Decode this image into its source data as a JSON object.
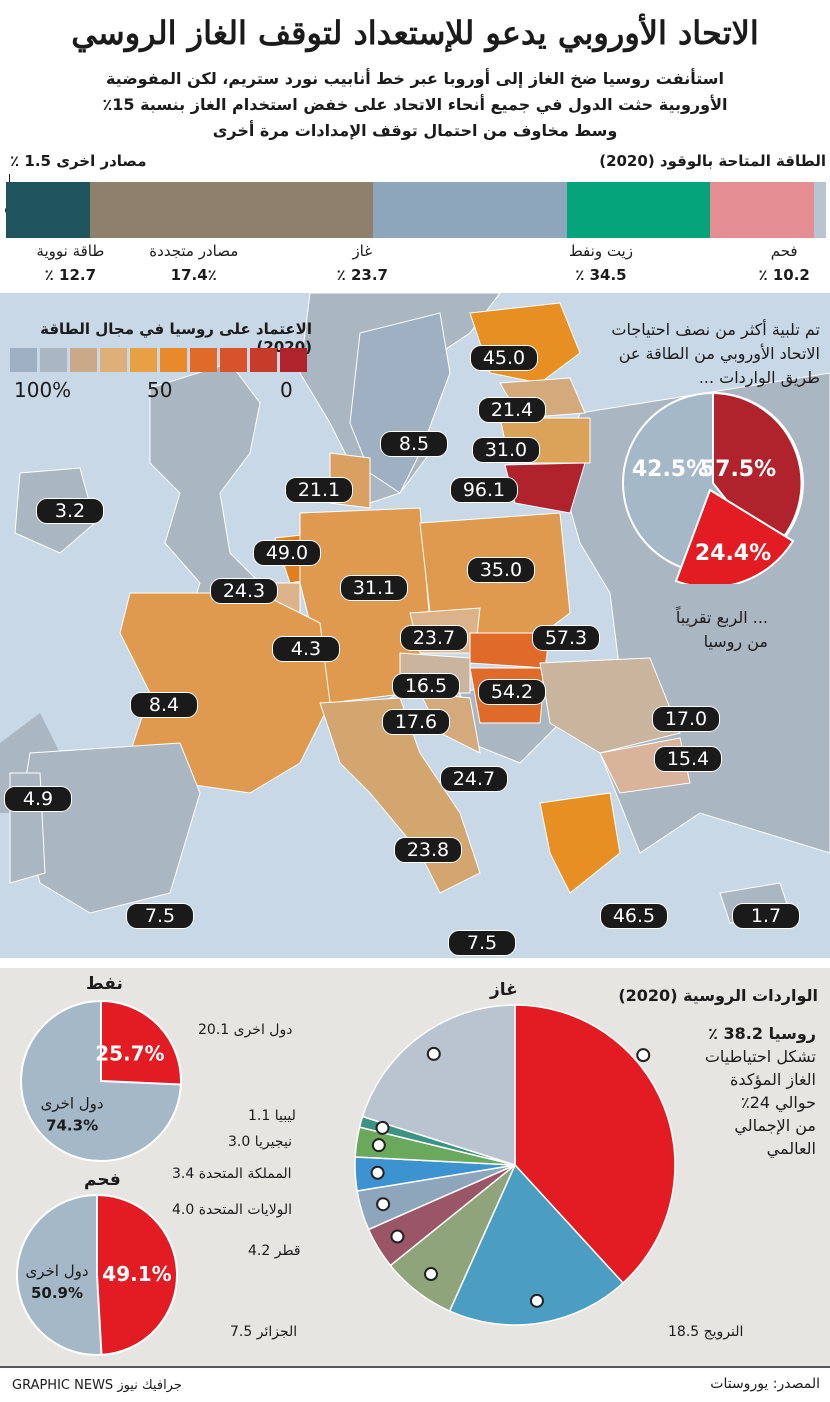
{
  "title": "الاتحاد الأوروبي يدعو للإستعداد لتوقف الغاز الروسي",
  "subtitle": [
    "استأنفت روسيا ضخ الغاز إلى أوروبا عبر خط أنابيب نورد ستريم، لكن المفوضية",
    "الأوروبية حثت الدول في جميع أنحاء الاتحاد على خفض استخدام الغاز بنسبة 15٪",
    "وسط مخاوف من احتمال توقف الإمدادات مرة أخرى"
  ],
  "colors": {
    "russia_red": "#e31b23",
    "dark_red": "#b0232c",
    "grey_blue": "#b8c4cf",
    "panel_bg": "#e7e5e2"
  },
  "energy_section": {
    "heading": "الطاقة المتاحة بالوقود (2020)",
    "other_label": "مصادر اخرى 1.5 ٪",
    "segments": [
      {
        "name": "فحم",
        "pct_label": "10.2 ٪",
        "value": 10.2,
        "color": "#1f545f"
      },
      {
        "name": "زيت ونفط",
        "pct_label": "34.5 ٪",
        "value": 34.5,
        "color": "#8f806b"
      },
      {
        "name": "غاز",
        "pct_label": "23.7 ٪",
        "value": 23.7,
        "color": "#8ea6bb"
      },
      {
        "name": "مصادر متجددة",
        "pct_label": "17.4٪",
        "value": 17.4,
        "color": "#06a47a"
      },
      {
        "name": "طاقة نووية",
        "pct_label": "12.7 ٪",
        "value": 12.7,
        "color": "#e58e92"
      },
      {
        "name": "مصادر اخرى",
        "pct_label": "1.5 ٪",
        "value": 1.5,
        "color": "#b8c4cf"
      }
    ]
  },
  "map": {
    "legend_title": "الاعتماد على روسيا في مجال الطاقة (2020)",
    "legend_colors": [
      "#b0232c",
      "#c63b2a",
      "#d9532a",
      "#e06b28",
      "#e88a2a",
      "#e8a045",
      "#ddb07a",
      "#c9a98a",
      "#aab6c2",
      "#9fb0c2"
    ],
    "legend_ticks": [
      "0",
      "50",
      "100%"
    ],
    "imports_text": [
      "تم تلبية أكثر من نصف احتياجات",
      "الاتحاد الأوروبي من الطاقة عن",
      "طريق الواردات ..."
    ],
    "quarter_text": [
      "... الربع تقريباً",
      "من روسيا"
    ],
    "imports_pie": {
      "imports": "57.5%",
      "domestic": "42.5%",
      "russia": "24.4%"
    },
    "country_values": [
      "45.0",
      "21.4",
      "31.0",
      "96.1",
      "8.5",
      "21.1",
      "3.2",
      "49.0",
      "24.3",
      "31.1",
      "35.0",
      "23.7",
      "57.3",
      "4.3",
      "16.5",
      "54.2",
      "8.4",
      "17.6",
      "17.0",
      "15.4",
      "24.7",
      "4.9",
      "23.8",
      "7.5",
      "46.5",
      "1.7",
      "7.5"
    ]
  },
  "imports_section": {
    "heading": "الواردات الروسية (2020)",
    "gas_title": "غاز",
    "oil_title": "نفط",
    "coal_title": "فحم",
    "russia_note_title": "روسيا 38.2 ٪",
    "russia_note": [
      "تشكل احتياطيات",
      "الغاز المؤكدة",
      "حوالي 24٪",
      "من الإجمالي",
      "العالمي"
    ],
    "gas_slices": [
      {
        "name": "روسيا",
        "value": 38.2,
        "label": "",
        "color": "#e31b23"
      },
      {
        "name": "النرويج",
        "value": 18.5,
        "label": "النرويج 18.5",
        "color": "#4b9ec1"
      },
      {
        "name": "الجزائر",
        "value": 7.5,
        "label": "الجزائر 7.5",
        "color": "#8fa47a"
      },
      {
        "name": "قطر",
        "value": 4.2,
        "label": "قطر 4.2",
        "color": "#9a5566"
      },
      {
        "name": "الولايات المتحدة",
        "value": 4.0,
        "label": "الولايات المتحدة 4.0",
        "color": "#8ea6bb"
      },
      {
        "name": "المملكة المتحدة",
        "value": 3.4,
        "label": "المملكة المتحدة 3.4",
        "color": "#3d93d0"
      },
      {
        "name": "نيجيريا",
        "value": 3.0,
        "label": "نيجيريا 3.0",
        "color": "#6aa85c"
      },
      {
        "name": "ليبيا",
        "value": 1.1,
        "label": "ليبيا 1.1",
        "color": "#3a9383"
      },
      {
        "name": "دول اخرى",
        "value": 20.1,
        "label": "دول اخرى 20.1",
        "color": "#b9c4d0"
      }
    ],
    "oil": {
      "russia": 25.7,
      "russia_label": "25.7%",
      "other_label": "دول اخرى",
      "other_pct": "74.3%"
    },
    "coal": {
      "russia": 49.1,
      "russia_label": "49.1%",
      "other_label": "دول اخرى",
      "other_pct": "50.9%"
    }
  },
  "footer": {
    "source": "المصدر: يوروستات",
    "credit": "GRAPHIC NEWS جرافيك نيوز"
  },
  "chart_data": [
    {
      "type": "bar",
      "title": "الطاقة المتاحة بالوقود (2020)",
      "categories": [
        "فحم",
        "زيت ونفط",
        "غاز",
        "مصادر متجددة",
        "طاقة نووية",
        "مصادر اخرى"
      ],
      "values": [
        10.2,
        34.5,
        23.7,
        17.4,
        12.7,
        1.5
      ]
    },
    {
      "type": "pie",
      "categories": [
        "imports",
        "domestic"
      ],
      "values": [
        57.5,
        42.5
      ]
    },
    {
      "type": "pie",
      "title": "غاز",
      "categories": [
        "روسيا",
        "النرويج",
        "الجزائر",
        "قطر",
        "الولايات المتحدة",
        "المملكة المتحدة",
        "نيجيريا",
        "ليبيا",
        "دول اخرى"
      ],
      "values": [
        38.2,
        18.5,
        7.5,
        4.2,
        4.0,
        3.4,
        3.0,
        1.1,
        20.1
      ]
    },
    {
      "type": "pie",
      "title": "نفط",
      "categories": [
        "روسيا",
        "دول اخرى"
      ],
      "values": [
        25.7,
        74.3
      ]
    },
    {
      "type": "pie",
      "title": "فحم",
      "categories": [
        "روسيا",
        "دول اخرى"
      ],
      "values": [
        49.1,
        50.9
      ]
    }
  ]
}
